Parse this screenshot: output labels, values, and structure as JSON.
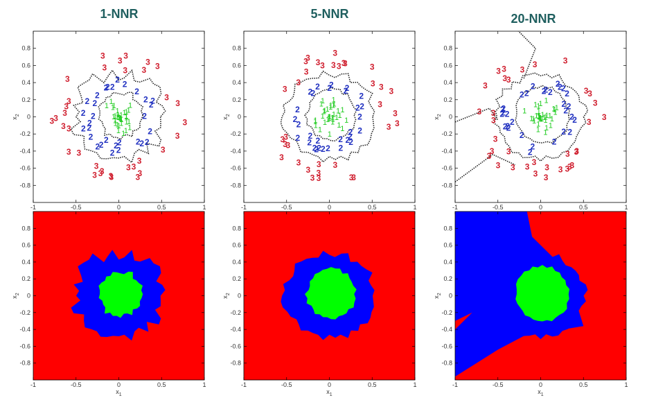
{
  "figure": {
    "colors": {
      "class1": "#22cc22",
      "class2": "#2030c0",
      "class3": "#d02030",
      "region1": "#00ff00",
      "region2": "#0000ff",
      "region3": "#ff0000",
      "boundary": "#222222",
      "title": "#1f5f5f"
    }
  },
  "chart_data": [
    {
      "type": "scatter",
      "title": "1-NNR",
      "xlabel": "x1",
      "ylabel": "x2",
      "xlim": [
        -1,
        1
      ],
      "ylim": [
        -1,
        1
      ],
      "xticks": [
        "-1",
        "-0.5",
        "0",
        "0.5",
        "1"
      ],
      "yticks": [
        "0.8",
        "0.6",
        "0.4",
        "0.2",
        "0",
        "-0.2",
        "-0.4",
        "-0.6",
        "-0.8"
      ],
      "markers": [
        "1",
        "2",
        "3"
      ],
      "boundary": "dotted",
      "k": 1
    },
    {
      "type": "scatter",
      "title": "5-NNR",
      "xlabel": "x1",
      "ylabel": "x2",
      "xlim": [
        -1,
        1
      ],
      "ylim": [
        -1,
        1
      ],
      "xticks": [
        "-1",
        "-0.5",
        "0",
        "0.5",
        "1"
      ],
      "yticks": [
        "0.8",
        "0.6",
        "0.4",
        "0.2",
        "0",
        "-0.2",
        "-0.4",
        "-0.6",
        "-0.8"
      ],
      "markers": [
        "1",
        "2",
        "3"
      ],
      "boundary": "dotted",
      "k": 5
    },
    {
      "type": "scatter",
      "title": "20-NNR",
      "xlabel": "x1",
      "ylabel": "x2",
      "xlim": [
        -1,
        1
      ],
      "ylim": [
        -1,
        1
      ],
      "xticks": [
        "-1",
        "-0.5",
        "0",
        "0.5",
        "1"
      ],
      "yticks": [
        "0.8",
        "0.6",
        "0.4",
        "0.2",
        "0",
        "-0.2",
        "-0.4",
        "-0.6",
        "-0.8"
      ],
      "markers": [
        "1",
        "2",
        "3"
      ],
      "boundary": "dotted",
      "k": 20
    },
    {
      "type": "heatmap",
      "xlabel": "x1",
      "ylabel": "x2",
      "xlim": [
        -1,
        1
      ],
      "ylim": [
        -1,
        1
      ],
      "xticks": [
        "-1",
        "-0.5",
        "0",
        "0.5",
        "1"
      ],
      "yticks": [
        "0.8",
        "0.6",
        "0.4",
        "0.2",
        "0",
        "-0.2",
        "-0.4",
        "-0.6",
        "-0.8"
      ],
      "regions": [
        "class 1 (center)",
        "class 2 (ring)",
        "class 3 (outer)"
      ],
      "k": 1
    },
    {
      "type": "heatmap",
      "xlabel": "x1",
      "ylabel": "x2",
      "xlim": [
        -1,
        1
      ],
      "ylim": [
        -1,
        1
      ],
      "xticks": [
        "-1",
        "-0.5",
        "0",
        "0.5",
        "1"
      ],
      "yticks": [
        "0.8",
        "0.6",
        "0.4",
        "0.2",
        "0",
        "-0.2",
        "-0.4",
        "-0.6",
        "-0.8"
      ],
      "regions": [
        "class 1 (center)",
        "class 2 (ring)",
        "class 3 (outer)"
      ],
      "k": 5
    },
    {
      "type": "heatmap",
      "xlabel": "x1",
      "ylabel": "x2",
      "xlim": [
        -1,
        1
      ],
      "ylim": [
        -1,
        1
      ],
      "xticks": [
        "-1",
        "-0.5",
        "0",
        "0.5",
        "1"
      ],
      "yticks": [
        "0.8",
        "0.6",
        "0.4",
        "0.2",
        "0",
        "-0.2",
        "-0.4",
        "-0.6",
        "-0.8"
      ],
      "regions": [
        "class 1 (center)",
        "class 2 (ring)",
        "class 3 (outer)"
      ],
      "k": 20
    }
  ]
}
